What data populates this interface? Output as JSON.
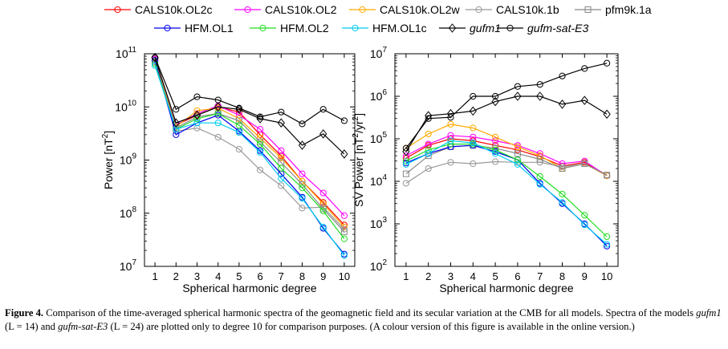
{
  "chart_data": [
    {
      "type": "line",
      "title": "",
      "xlabel": "Spherical harmonic degree",
      "ylabel": "Power [nT²]",
      "ylabel_parts": [
        "Power [nT",
        "2",
        "]"
      ],
      "yscale": "log",
      "xlim": [
        0.5,
        10.5
      ],
      "ylim": [
        10000000.0,
        100000000000.0
      ],
      "x": [
        1,
        2,
        3,
        4,
        5,
        6,
        7,
        8,
        9,
        10
      ],
      "x_ticks": [
        "1",
        "2",
        "3",
        "4",
        "5",
        "6",
        "7",
        "8",
        "9",
        "10"
      ],
      "y_ticks": [
        {
          "base": "10",
          "exp": "7",
          "value": 10000000.0
        },
        {
          "base": "10",
          "exp": "8",
          "value": 100000000.0
        },
        {
          "base": "10",
          "exp": "9",
          "value": 1000000000.0
        },
        {
          "base": "10",
          "exp": "10",
          "value": 10000000000.0
        },
        {
          "base": "10",
          "exp": "11",
          "value": 100000000000.0
        }
      ],
      "series": [
        {
          "name": "CALS10k.OL2c",
          "values": [
            80000000000.0,
            4500000000.0,
            7000000000.0,
            10000000000.0,
            8000000000.0,
            3000000000.0,
            1200000000.0,
            400000000.0,
            160000000.0,
            60000000.0
          ]
        },
        {
          "name": "CALS10k.OL2",
          "values": [
            80000000000.0,
            4500000000.0,
            7500000000.0,
            10500000000.0,
            7000000000.0,
            3800000000.0,
            1500000000.0,
            550000000.0,
            240000000.0,
            90000000.0
          ]
        },
        {
          "name": "CALS10k.OL2w",
          "values": [
            75000000000.0,
            4200000000.0,
            8500000000.0,
            9500000000.0,
            6000000000.0,
            2600000000.0,
            1100000000.0,
            400000000.0,
            150000000.0,
            55000000.0
          ]
        },
        {
          "name": "CALS10k.1b",
          "values": [
            70000000000.0,
            3500000000.0,
            4000000000.0,
            2700000000.0,
            1600000000.0,
            650000000.0,
            330000000.0,
            125000000.0,
            130000000.0,
            50000000.0
          ]
        },
        {
          "name": "pfm9k.1a",
          "values": [
            70000000000.0,
            4000000000.0,
            6500000000.0,
            7500000000.0,
            5500000000.0,
            2200000000.0,
            900000000.0,
            350000000.0,
            120000000.0,
            45000000.0
          ]
        },
        {
          "name": "HFM.OL1",
          "values": [
            75000000000.0,
            3000000000.0,
            5000000000.0,
            7000000000.0,
            3500000000.0,
            1500000000.0,
            550000000.0,
            200000000.0,
            52000000.0,
            17000000.0
          ]
        },
        {
          "name": "HFM.OL2",
          "values": [
            65000000000.0,
            3800000000.0,
            6000000000.0,
            7500000000.0,
            4500000000.0,
            2000000000.0,
            700000000.0,
            300000000.0,
            110000000.0,
            33000000.0
          ]
        },
        {
          "name": "HFM.OL1c",
          "values": [
            60000000000.0,
            3800000000.0,
            5000000000.0,
            5000000000.0,
            3300000000.0,
            1400000000.0,
            450000000.0,
            190000000.0,
            55000000.0,
            16000000.0
          ]
        },
        {
          "name": "gufm1",
          "values": [
            85000000000.0,
            5000000000.0,
            7000000000.0,
            10000000000.0,
            9000000000.0,
            6000000000.0,
            5000000000.0,
            1900000000.0,
            3100000000.0,
            1300000000.0
          ]
        },
        {
          "name": "gufm-sat-E3",
          "values": [
            85000000000.0,
            9000000000.0,
            15500000000.0,
            13500000000.0,
            9500000000.0,
            6500000000.0,
            8000000000.0,
            4800000000.0,
            9000000000.0,
            5500000000.0
          ]
        }
      ]
    },
    {
      "type": "line",
      "title": "",
      "xlabel": "Spherical harmonic degree",
      "ylabel": "SV Power [nT²/yr²]",
      "ylabel_parts": [
        "SV Power [nT",
        "2",
        "/yr",
        "2",
        "]"
      ],
      "yscale": "log",
      "xlim": [
        0.5,
        10.5
      ],
      "ylim": [
        100.0,
        10000000.0
      ],
      "x": [
        1,
        2,
        3,
        4,
        5,
        6,
        7,
        8,
        9,
        10
      ],
      "x_ticks": [
        "1",
        "2",
        "3",
        "4",
        "5",
        "6",
        "7",
        "8",
        "9",
        "10"
      ],
      "y_ticks": [
        {
          "base": "10",
          "exp": "2",
          "value": 100.0
        },
        {
          "base": "10",
          "exp": "3",
          "value": 1000.0
        },
        {
          "base": "10",
          "exp": "4",
          "value": 10000.0
        },
        {
          "base": "10",
          "exp": "5",
          "value": 100000.0
        },
        {
          "base": "10",
          "exp": "6",
          "value": 1000000.0
        },
        {
          "base": "10",
          "exp": "7",
          "value": 10000000.0
        }
      ],
      "series": [
        {
          "name": "CALS10k.OL2c",
          "values": [
            35000.0,
            70000.0,
            100000.0,
            90000.0,
            70000.0,
            55000.0,
            38000.0,
            23000.0,
            28000.0,
            14000.0
          ]
        },
        {
          "name": "CALS10k.OL2",
          "values": [
            40000.0,
            75000.0,
            120000.0,
            110000.0,
            90000.0,
            70000.0,
            45000.0,
            26000.0,
            30000.0,
            13500.0
          ]
        },
        {
          "name": "CALS10k.OL2w",
          "values": [
            60000.0,
            130000.0,
            220000.0,
            180000.0,
            110000.0,
            65000.0,
            40000.0,
            20000.0,
            26000.0,
            13500.0
          ]
        },
        {
          "name": "CALS10k.1b",
          "values": [
            9000.0,
            20000.0,
            28000.0,
            26000.0,
            29000.0,
            28000.0,
            28000.0,
            22000.0,
            26000.0,
            14000.0
          ]
        },
        {
          "name": "pfm9k.1a",
          "values": [
            15000.0,
            40000.0,
            65000.0,
            70000.0,
            60000.0,
            45000.0,
            33000.0,
            20000.0,
            26000.0,
            14000.0
          ]
        },
        {
          "name": "HFM.OL1",
          "values": [
            27000.0,
            45000.0,
            65000.0,
            70000.0,
            50000.0,
            32000.0,
            9000.0,
            3000.0,
            1000.0,
            300
          ]
        },
        {
          "name": "HFM.OL2",
          "values": [
            30000.0,
            55000.0,
            75000.0,
            75000.0,
            55000.0,
            32000.0,
            13000.0,
            5000.0,
            1600.0,
            500
          ]
        },
        {
          "name": "HFM.OL1c",
          "values": [
            25000.0,
            45000.0,
            90000.0,
            80000.0,
            45000.0,
            25000.0,
            8500.0,
            3200.0,
            950,
            330
          ]
        },
        {
          "name": "gufm1",
          "values": [
            50000.0,
            350000.0,
            390000.0,
            450000.0,
            750000.0,
            1000000.0,
            1000000.0,
            650000.0,
            800000.0,
            380000.0
          ]
        },
        {
          "name": "gufm-sat-E3",
          "values": [
            60000.0,
            300000.0,
            320000.0,
            1000000.0,
            1000000.0,
            1700000.0,
            1900000.0,
            3000000.0,
            4500000.0,
            6000000.0
          ]
        }
      ]
    }
  ],
  "legend": {
    "placement": "top-center",
    "rows": [
      [
        "CALS10k.OL2c",
        "CALS10k.OL2",
        "CALS10k.OL2w",
        "CALS10k.1b",
        "pfm9k.1a"
      ],
      [
        "HFM.OL1",
        "HFM.OL2",
        "HFM.OL1c",
        "gufm1",
        "gufm-sat-E3"
      ]
    ]
  },
  "series_styles": {
    "CALS10k.OL2c": {
      "color": "#ff0000",
      "marker": "circle",
      "italic": false
    },
    "CALS10k.OL2": {
      "color": "#ff00ff",
      "marker": "circle",
      "italic": false
    },
    "CALS10k.OL2w": {
      "color": "#ffaa00",
      "marker": "circle",
      "italic": false
    },
    "CALS10k.1b": {
      "color": "#999999",
      "marker": "circle",
      "italic": false
    },
    "pfm9k.1a": {
      "color": "#888888",
      "marker": "square",
      "italic": false
    },
    "HFM.OL1": {
      "color": "#0000ee",
      "marker": "circle",
      "italic": false
    },
    "HFM.OL2": {
      "color": "#22dd22",
      "marker": "circle",
      "italic": false
    },
    "HFM.OL1c": {
      "color": "#00ccee",
      "marker": "circle",
      "italic": false
    },
    "gufm1": {
      "color": "#000000",
      "marker": "diamond",
      "italic": true
    },
    "gufm-sat-E3": {
      "color": "#000000",
      "marker": "circle",
      "italic": true
    }
  },
  "caption": {
    "figure_label": "Figure 4.",
    "text_1": " Comparison of the time-averaged spherical harmonic spectra of the geomagnetic field and its secular variation at the CMB for all models. Spectra of the models ",
    "model_1": "gufm1",
    "text_2": " (L = 14) and ",
    "model_2": "gufm-sat-E3",
    "text_3": " (L = 24) are plotted only to degree 10 for comparison purposes. (A colour version of this figure is available in the online version.)"
  }
}
